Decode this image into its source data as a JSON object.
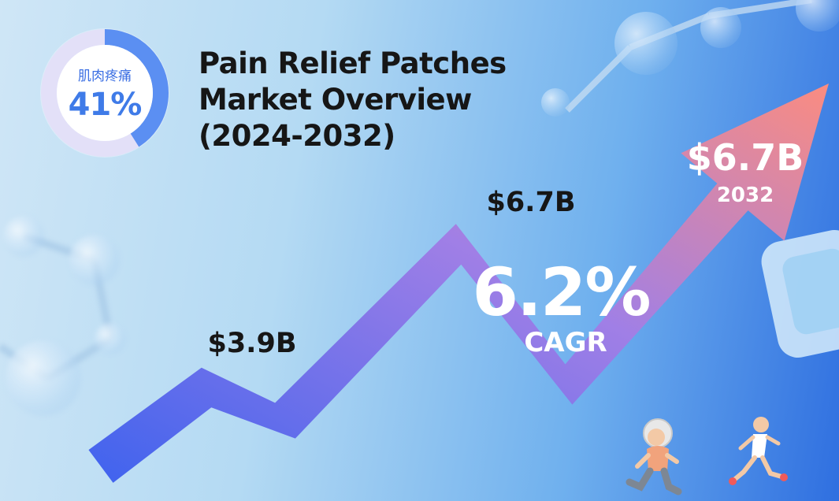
{
  "header": {
    "title_lines": [
      "Pain Relief Patches",
      "Market Overview",
      "(2024-2032)"
    ]
  },
  "badge": {
    "label": "肌肉疼痛",
    "value_text": "41%",
    "value": 41,
    "colors": {
      "filled": "#5b8ff2",
      "remaining": "#e3e0f8"
    }
  },
  "chart_data": {
    "type": "line",
    "series": [
      {
        "points": [
          {
            "label": "$3.9B"
          },
          {
            "label": "$6.7B"
          },
          {
            "label": "$6.7B",
            "year": "2032"
          }
        ]
      }
    ],
    "growth": {
      "value_text": "6.2%",
      "label": "CAGR"
    },
    "colors": {
      "arrow_start": "#3f63ee",
      "arrow_mid": "#a07fe6",
      "arrow_end": "#fb8c80"
    }
  },
  "decor": {
    "icons": [
      "molecule-icon",
      "patch-icon",
      "elderly-runner-icon",
      "runner-icon"
    ]
  }
}
